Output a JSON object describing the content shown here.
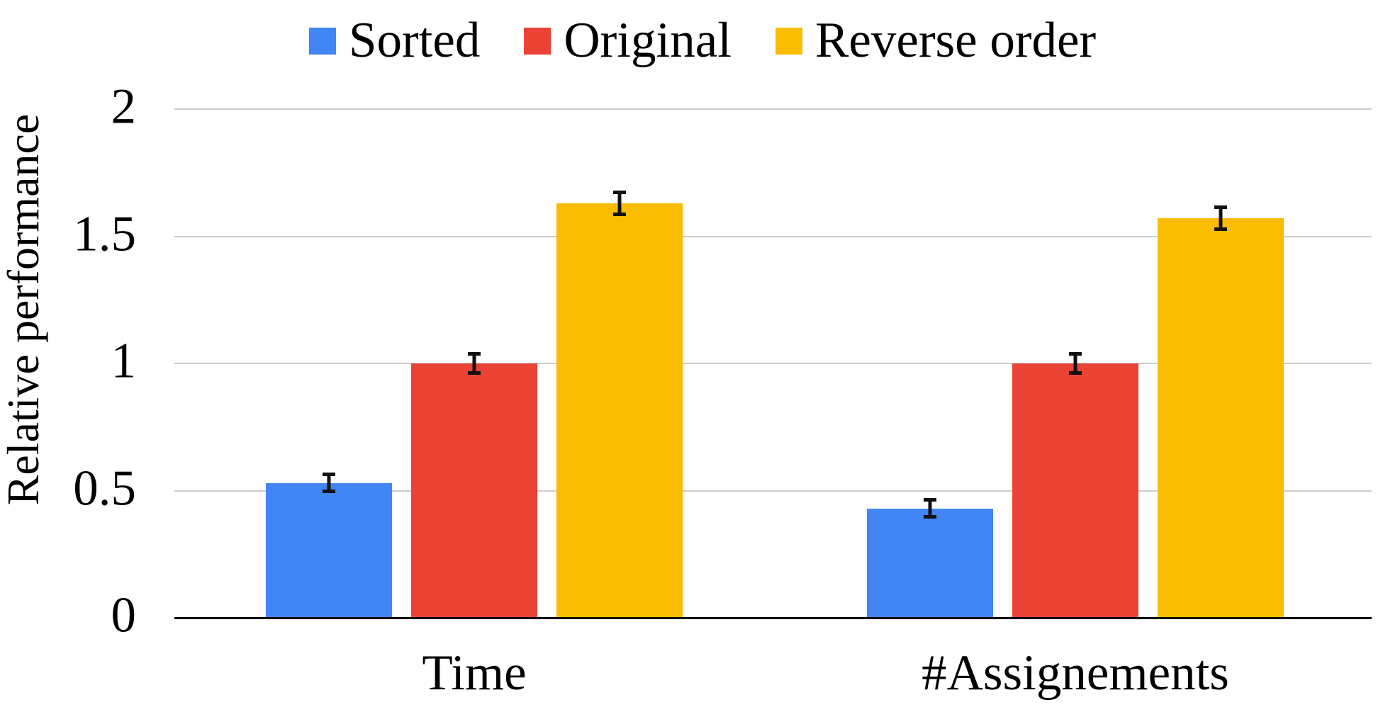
{
  "chart_data": {
    "type": "bar",
    "title": "",
    "categories": [
      "Time",
      "#Assignements"
    ],
    "series": [
      {
        "name": "Sorted",
        "color": "#4285F4",
        "values": [
          0.53,
          0.43
        ],
        "errors": [
          0.04,
          0.04
        ]
      },
      {
        "name": "Original",
        "color": "#EA4335",
        "values": [
          1.0,
          1.0
        ],
        "errors": [
          0.045,
          0.045
        ]
      },
      {
        "name": "Reverse order",
        "color": "#FBBC04",
        "values": [
          1.63,
          1.57
        ],
        "errors": [
          0.05,
          0.05
        ]
      }
    ],
    "xlabel": "",
    "ylabel": "Relative performance",
    "ylim": [
      0,
      2
    ],
    "yticks": [
      0,
      0.5,
      1,
      1.5,
      2
    ],
    "ytick_labels": [
      "0",
      "0.5",
      "1",
      "1.5",
      "2"
    ],
    "grid": true,
    "legend_position": "top-center",
    "error_bars": true,
    "colors": {
      "gridline": "#cccccc",
      "axis": "#000000",
      "text": "#000000",
      "background": "#ffffff"
    }
  }
}
